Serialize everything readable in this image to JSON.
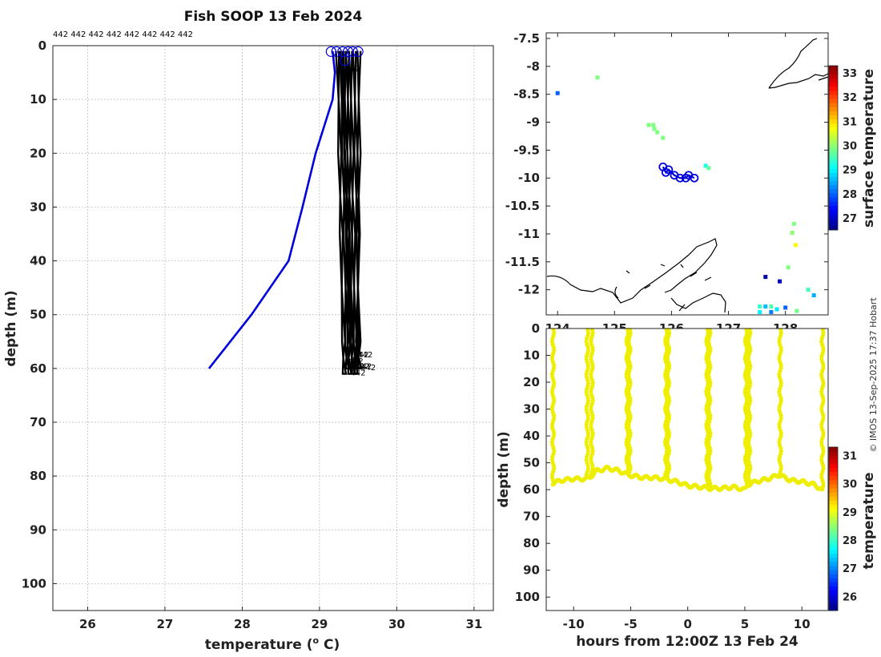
{
  "chart_data": [
    {
      "type": "line",
      "title": "Fish SOOP 13 Feb 2024",
      "xlabel": "temperature (",
      "xlabel_sup": "o",
      "xlabel_tail": " C)",
      "ylabel": "depth (m)",
      "xlim": [
        25.55,
        31.25
      ],
      "ylim": [
        0,
        105
      ],
      "xticks": [
        26,
        27,
        28,
        29,
        30,
        31
      ],
      "yticks": [
        0,
        10,
        20,
        30,
        40,
        50,
        60,
        70,
        80,
        90,
        100
      ],
      "top_label": "442 442 442 442 442 442 442 442",
      "profile_label": "442",
      "reference_profile": {
        "name": "climatology",
        "color": "#0000dd",
        "points": [
          [
            29.17,
            1
          ],
          [
            29.2,
            5
          ],
          [
            29.17,
            10
          ],
          [
            28.95,
            20
          ],
          [
            28.78,
            30
          ],
          [
            28.6,
            40
          ],
          [
            28.12,
            50
          ],
          [
            27.57,
            60
          ]
        ]
      },
      "profiles": [
        {
          "color": "#000000",
          "temperatures": [
            29.22,
            29.24,
            29.25,
            29.26,
            29.27,
            29.28,
            29.3,
            29.3,
            29.31
          ],
          "depths": [
            1,
            10,
            20,
            28,
            35,
            45,
            55,
            58,
            61
          ]
        },
        {
          "color": "#000000",
          "temperatures": [
            29.27,
            29.28,
            29.3,
            29.31,
            29.32,
            29.33,
            29.34,
            29.34,
            29.35
          ],
          "depths": [
            1,
            10,
            20,
            28,
            35,
            45,
            55,
            58,
            60
          ]
        },
        {
          "color": "#000000",
          "temperatures": [
            29.31,
            29.32,
            29.33,
            29.34,
            29.35,
            29.36,
            29.37,
            29.37,
            29.38
          ],
          "depths": [
            1,
            10,
            20,
            28,
            35,
            45,
            55,
            58,
            61
          ]
        },
        {
          "color": "#000000",
          "temperatures": [
            29.35,
            29.36,
            29.37,
            29.38,
            29.39,
            29.4,
            29.41,
            29.41,
            29.42
          ],
          "depths": [
            1,
            10,
            20,
            28,
            35,
            45,
            55,
            58,
            60
          ]
        },
        {
          "color": "#000000",
          "temperatures": [
            29.39,
            29.4,
            29.41,
            29.42,
            29.43,
            29.44,
            29.45,
            29.45,
            29.46
          ],
          "depths": [
            1,
            10,
            20,
            28,
            35,
            45,
            55,
            58,
            61
          ]
        },
        {
          "color": "#000000",
          "temperatures": [
            29.44,
            29.45,
            29.46,
            29.47,
            29.48,
            29.49,
            29.5,
            29.5,
            29.51
          ],
          "depths": [
            1,
            10,
            20,
            28,
            35,
            45,
            55,
            58,
            60
          ]
        },
        {
          "color": "#000000",
          "temperatures": [
            29.5,
            29.5,
            29.5,
            29.5,
            29.49,
            29.49,
            29.48,
            29.48,
            29.47
          ],
          "depths": [
            1,
            10,
            20,
            28,
            35,
            45,
            55,
            57,
            60
          ]
        },
        {
          "color": "#000000",
          "temperatures": [
            29.28,
            29.3,
            29.33,
            29.35,
            29.36,
            29.38,
            29.4,
            29.41,
            29.43
          ],
          "depths": [
            1,
            10,
            20,
            28,
            35,
            45,
            55,
            58,
            61
          ]
        }
      ],
      "surface_markers": [
        29.15,
        29.22,
        29.3,
        29.37,
        29.43,
        29.5,
        29.33
      ]
    },
    {
      "type": "scatter",
      "title": "",
      "xlim": [
        123.8,
        128.75
      ],
      "ylim": [
        -12.45,
        -7.4
      ],
      "xticks": [
        124,
        125,
        126,
        127,
        128
      ],
      "xtick_labels": [
        "124",
        "125",
        "126",
        "127",
        "128"
      ],
      "yticks": [
        -7.5,
        -8,
        -8.5,
        -9,
        -9.5,
        -10,
        -10.5,
        -11,
        -11.5,
        -12
      ],
      "ytick_labels": [
        "-7.5",
        "-8",
        "-8.5",
        "-9",
        "-9.5",
        "-10",
        "-10.5",
        "-11",
        "-11.5",
        "-12"
      ],
      "colorbar_label": "surface temperature",
      "colorbar_range": [
        26.5,
        33.3
      ],
      "colorbar_ticks": [
        27,
        28,
        29,
        30,
        31,
        32,
        33
      ],
      "track": [
        [
          125.85,
          -9.8
        ],
        [
          125.9,
          -9.9
        ],
        [
          125.95,
          -9.85
        ],
        [
          126.05,
          -9.95
        ],
        [
          126.15,
          -10.0
        ],
        [
          126.25,
          -10.0
        ],
        [
          126.3,
          -9.95
        ],
        [
          126.4,
          -10.0
        ]
      ],
      "sst_pixels": [
        {
          "lon": 124.0,
          "lat": -8.48,
          "t": 28.0
        },
        {
          "lon": 124.7,
          "lat": -8.2,
          "t": 29.9
        },
        {
          "lon": 125.6,
          "lat": -9.05,
          "t": 29.9
        },
        {
          "lon": 125.68,
          "lat": -9.05,
          "t": 29.9
        },
        {
          "lon": 125.7,
          "lat": -9.12,
          "t": 29.9
        },
        {
          "lon": 125.75,
          "lat": -9.18,
          "t": 29.9
        },
        {
          "lon": 125.85,
          "lat": -9.28,
          "t": 29.9
        },
        {
          "lon": 126.6,
          "lat": -9.78,
          "t": 29.2
        },
        {
          "lon": 126.65,
          "lat": -9.82,
          "t": 29.7
        },
        {
          "lon": 128.15,
          "lat": -10.82,
          "t": 29.9
        },
        {
          "lon": 128.12,
          "lat": -10.98,
          "t": 30.0
        },
        {
          "lon": 128.18,
          "lat": -11.2,
          "t": 30.8
        },
        {
          "lon": 128.05,
          "lat": -11.6,
          "t": 29.9
        },
        {
          "lon": 127.9,
          "lat": -11.85,
          "t": 27.0
        },
        {
          "lon": 127.65,
          "lat": -11.77,
          "t": 26.8
        },
        {
          "lon": 128.4,
          "lat": -12.0,
          "t": 29.5
        },
        {
          "lon": 128.5,
          "lat": -12.1,
          "t": 28.5
        },
        {
          "lon": 127.55,
          "lat": -12.3,
          "t": 29.4
        },
        {
          "lon": 127.65,
          "lat": -12.3,
          "t": 28.6
        },
        {
          "lon": 127.75,
          "lat": -12.3,
          "t": 29.6
        },
        {
          "lon": 127.75,
          "lat": -12.4,
          "t": 28.2
        },
        {
          "lon": 127.55,
          "lat": -12.4,
          "t": 29.0
        },
        {
          "lon": 127.85,
          "lat": -12.35,
          "t": 28.9
        },
        {
          "lon": 128.0,
          "lat": -12.32,
          "t": 28.0
        },
        {
          "lon": 128.2,
          "lat": -12.38,
          "t": 29.8
        }
      ]
    },
    {
      "type": "scatter",
      "title": "",
      "xlabel": "hours from 12:00Z 13 Feb 24",
      "ylabel": "depth (m)",
      "xlim": [
        -12.4,
        12.3
      ],
      "ylim": [
        0,
        105
      ],
      "xticks": [
        -10,
        -5,
        0,
        5,
        10
      ],
      "xtick_labels": [
        "-10",
        "-5",
        "0",
        "5",
        "10"
      ],
      "yticks": [
        0,
        10,
        20,
        30,
        40,
        50,
        60,
        70,
        80,
        90,
        100
      ],
      "colorbar_label": "temperature",
      "colorbar_range": [
        25.5,
        31.3
      ],
      "colorbar_ticks": [
        26,
        27,
        28,
        29,
        30,
        31
      ],
      "marker_color": "#eeee00",
      "vertical_profiles": [
        -11.8,
        -8.8,
        -8.4,
        -5.3,
        -5.1,
        -1.9,
        -1.7,
        1.7,
        1.9,
        5.1,
        5.4,
        8.1,
        11.8
      ],
      "bottom_series": {
        "hours": [
          -11.8,
          -11,
          -10,
          -9,
          -8.6,
          -8,
          -7,
          -6,
          -5.2,
          -4,
          -3,
          -2,
          -1,
          0,
          1,
          2,
          3,
          4,
          5,
          5.3,
          6,
          7,
          8,
          9,
          10,
          11,
          11.8
        ],
        "depths": [
          57.5,
          56.5,
          56,
          56,
          55.5,
          53,
          52,
          53,
          54.5,
          55.5,
          55.5,
          56,
          57,
          58.5,
          59,
          59.5,
          59.5,
          59,
          60,
          58,
          57,
          56,
          54.5,
          56.5,
          57,
          58,
          60
        ]
      }
    }
  ],
  "watermark": "© IMOS 13-Sep-2025 17:37 Hobart"
}
